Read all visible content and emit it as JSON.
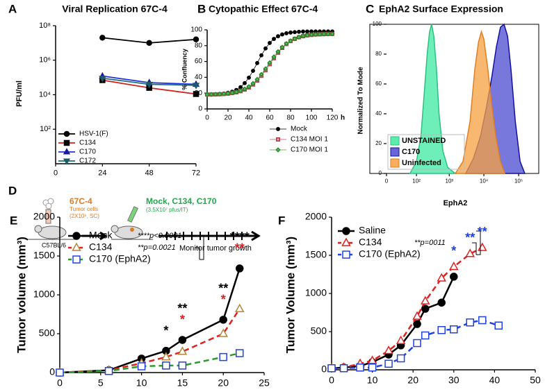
{
  "chart_data": [
    {
      "type": "line",
      "panel_label": "A",
      "title": "Viral Replication 67C-4",
      "y_label": "PFU/ml",
      "y_scale": "log",
      "x": [
        24,
        48,
        72
      ],
      "xlim": [
        0,
        72
      ],
      "xticks": [
        0,
        24,
        48,
        72
      ],
      "ylim": [
        1,
        100000000
      ],
      "yticks": [
        {
          "value": 100,
          "label": "10²"
        },
        {
          "value": 10000,
          "label": "10⁴"
        },
        {
          "value": 1000000,
          "label": "10⁶"
        },
        {
          "value": 100000000,
          "label": "10⁸"
        }
      ],
      "series": [
        {
          "name": "HSV-1(F)",
          "color": "#000000",
          "marker": "circle",
          "marker_color": "#000000",
          "marker_fill": "#000000",
          "values": [
            20000000,
            10000000,
            16000000
          ]
        },
        {
          "name": "C134",
          "color": "#d42020",
          "marker": "square",
          "marker_color": "#000000",
          "marker_fill": "#000000",
          "values": [
            70000,
            25000,
            11000
          ]
        },
        {
          "name": "C170",
          "color": "#2030e0",
          "marker": "triangle",
          "marker_color": "#1a1aa0",
          "marker_fill": "#1a1aa0",
          "values": [
            120000,
            50000,
            40000
          ]
        },
        {
          "name": "C172",
          "color": "#1f6f7a",
          "marker": "triangle-down",
          "marker_color": "#1f5a66",
          "marker_fill": "#1f5a66",
          "values": [
            90000,
            40000,
            35000
          ]
        }
      ]
    },
    {
      "type": "line",
      "panel_label": "B",
      "title": "Cytopathic Effect 67C-4",
      "y_label": "% Confluency",
      "x_unit": "h",
      "x": [
        0,
        4,
        8,
        12,
        16,
        20,
        24,
        28,
        32,
        36,
        40,
        44,
        48,
        52,
        56,
        60,
        64,
        68,
        72,
        76,
        80,
        84,
        88,
        92,
        96,
        100,
        104,
        108,
        112,
        116,
        120
      ],
      "xlim": [
        0,
        120
      ],
      "xticks": [
        0,
        20,
        40,
        60,
        80,
        100,
        120
      ],
      "ylim": [
        0,
        100
      ],
      "yticks": [
        0,
        20,
        40,
        60,
        80,
        100
      ],
      "series": [
        {
          "name": "Mock",
          "color": "#000000",
          "marker": "circle",
          "marker_color": "#000000",
          "marker_fill": "#000000",
          "values": [
            18.2,
            18.3,
            18.5,
            18.9,
            19.4,
            20.4,
            21.8,
            24.0,
            27.5,
            32.6,
            39.5,
            48.2,
            58.0,
            67.8,
            76.5,
            83.4,
            88.5,
            91.9,
            94.2,
            95.7,
            96.6,
            97.1,
            97.5,
            97.8,
            97.9,
            98.0,
            98.0,
            98.0,
            98.0,
            98.0,
            98.0
          ]
        },
        {
          "name": "C134 MOI 1",
          "color": "#c05060",
          "marker": "square",
          "marker_color": "#b03a4a",
          "marker_fill": "#f0a0a8",
          "values": [
            18.2,
            18.3,
            18.4,
            18.6,
            18.9,
            19.4,
            20.1,
            21.0,
            22.4,
            24.4,
            27.2,
            30.9,
            35.8,
            41.8,
            48.9,
            56.5,
            64.1,
            71.1,
            77.2,
            82.1,
            85.8,
            88.6,
            90.6,
            92.0,
            93.0,
            93.6,
            94.1,
            94.4,
            94.6,
            94.7,
            94.8
          ]
        },
        {
          "name": "C170 MOI 1",
          "color": "#3aa03a",
          "marker": "diamond",
          "marker_color": "#2a8a2a",
          "marker_fill": "#60c060",
          "values": [
            18.2,
            18.3,
            18.5,
            18.7,
            19.1,
            19.6,
            20.4,
            21.4,
            23.0,
            25.2,
            28.2,
            32.2,
            37.4,
            43.6,
            50.8,
            58.4,
            65.8,
            72.4,
            78.0,
            82.6,
            86.1,
            88.8,
            90.8,
            92.2,
            93.2,
            93.8,
            94.2,
            94.5,
            94.7,
            94.8,
            94.9
          ]
        }
      ]
    },
    {
      "type": "area",
      "panel_label": "C",
      "title": "EphA2 Surface Expression",
      "y_label": "Normalized To Mode",
      "x_label": "EphA2",
      "x_scale": "biexponential",
      "xlim": [
        0,
        300000
      ],
      "xticks": [
        0,
        {
          "value": 100,
          "label": "10²"
        },
        {
          "value": 1000,
          "label": "10³"
        },
        {
          "value": 10000,
          "label": "10⁴"
        },
        {
          "value": 100000,
          "label": "10⁵"
        }
      ],
      "ylim": [
        0,
        100
      ],
      "yticks": [
        0,
        20,
        40,
        60,
        80,
        100
      ],
      "series": [
        {
          "name": "UNSTAINED",
          "color": "#3de8a0",
          "line_color": "#2cc080",
          "x": [
            60,
            100,
            140,
            180,
            220,
            260,
            300,
            350,
            420,
            500,
            650,
            900,
            1500
          ],
          "values": [
            0,
            8,
            25,
            55,
            80,
            95,
            100,
            92,
            70,
            40,
            15,
            4,
            0
          ]
        },
        {
          "name": "C170",
          "color": "#4a4ad0",
          "line_color": "#1010a0",
          "x": [
            3000,
            5000,
            8000,
            12000,
            17000,
            23000,
            30000,
            38000,
            48000,
            60000,
            80000,
            110000,
            150000
          ],
          "values": [
            0,
            10,
            25,
            45,
            65,
            85,
            98,
            100,
            92,
            70,
            35,
            8,
            0
          ]
        },
        {
          "name": "Uninfected",
          "color": "#f7a040",
          "line_color": "#e08020",
          "x": [
            1500,
            2500,
            4000,
            5500,
            7000,
            8500,
            10000,
            13000,
            17000,
            22000,
            30000,
            40000
          ],
          "values": [
            0,
            8,
            35,
            70,
            88,
            95,
            90,
            70,
            45,
            25,
            8,
            0
          ]
        }
      ]
    },
    {
      "type": "line",
      "panel_label": "E",
      "y_label": "Tumor volume (mm³)",
      "x": [
        0,
        6,
        10,
        13,
        15,
        20,
        22
      ],
      "xlim": [
        0,
        25
      ],
      "xticks": [
        0,
        5,
        10,
        15,
        20,
        25
      ],
      "ylim": [
        0,
        2000
      ],
      "yticks": [
        0,
        500,
        1000,
        1500,
        2000
      ],
      "series": [
        {
          "name": "Mock",
          "p_label": "****p<0.0001",
          "color": "#000000",
          "marker": "circle",
          "marker_color": "#000000",
          "marker_fill": "#000000",
          "values": [
            0,
            30,
            180,
            280,
            420,
            680,
            1340
          ]
        },
        {
          "name": "C134",
          "p_label": "**p=0.0021",
          "color": "#e02020",
          "line_style": "dashed",
          "marker": "triangle",
          "marker_color": "#b5853a",
          "marker_fill": "#ffffff",
          "values": [
            0,
            30,
            120,
            200,
            270,
            500,
            820
          ]
        },
        {
          "name": "C170 (EphA2)",
          "color": "#2e9a2e",
          "line_style": "dashed",
          "marker": "square",
          "marker_color": "#2040e0",
          "marker_fill": "#ffffff",
          "values": [
            0,
            20,
            80,
            90,
            90,
            200,
            250
          ]
        }
      ],
      "annotations": [
        {
          "text": "*",
          "x": 13,
          "color": "#000000"
        },
        {
          "text": "*",
          "x": 15,
          "color": "#e02020"
        },
        {
          "text": "**",
          "x": 15,
          "color": "#000000"
        },
        {
          "text": "*",
          "x": 20,
          "color": "#e02020"
        },
        {
          "text": "**",
          "x": 20,
          "color": "#000000"
        },
        {
          "text": "**",
          "x": 22,
          "color": "#e02020"
        },
        {
          "text": "****",
          "x": 22,
          "color": "#000000"
        }
      ]
    },
    {
      "type": "line",
      "panel_label": "F",
      "y_label": "Tumor Volume (mm³)",
      "xlim": [
        0,
        50
      ],
      "xticks": [
        0,
        10,
        20,
        30,
        40,
        50
      ],
      "ylim": [
        0,
        2000
      ],
      "yticks": [
        0,
        500,
        1000,
        1500,
        2000
      ],
      "series": [
        {
          "name": "Saline",
          "color": "#000000",
          "marker": "circle",
          "marker_color": "#000000",
          "marker_fill": "#000000",
          "x": [
            0,
            3,
            7,
            10,
            14,
            17,
            21,
            23,
            27,
            30
          ],
          "values": [
            20,
            30,
            50,
            100,
            200,
            320,
            600,
            800,
            880,
            1220
          ]
        },
        {
          "name": "C134",
          "p_label": "**p=0011",
          "color": "#e02020",
          "line_style": "dashed",
          "marker": "triangle",
          "marker_color": "#e02020",
          "marker_fill": "#ffffff",
          "x": [
            0,
            3,
            7,
            10,
            14,
            17,
            21,
            23,
            27,
            30,
            34,
            37
          ],
          "values": [
            20,
            30,
            80,
            120,
            250,
            380,
            700,
            900,
            1200,
            1350,
            1520,
            1600
          ]
        },
        {
          "name": "C170 (EphA2)",
          "color": "#2040e0",
          "line_style": "dashed",
          "marker": "square",
          "marker_color": "#2040e0",
          "marker_fill": "#ffffff",
          "x": [
            0,
            3,
            7,
            10,
            14,
            17,
            21,
            23,
            27,
            30,
            34,
            37,
            41
          ],
          "values": [
            20,
            20,
            30,
            30,
            80,
            150,
            350,
            450,
            520,
            530,
            620,
            650,
            580
          ]
        }
      ],
      "annotations": [
        {
          "text": "*",
          "x": 30,
          "color": "#2040e0"
        },
        {
          "text": "**",
          "x": 34,
          "color": "#2040e0"
        },
        {
          "text": "**",
          "x": 37,
          "color": "#2040e0"
        }
      ]
    }
  ],
  "schematic": {
    "panel_label": "D",
    "tumor": {
      "name": "67C-4",
      "cells": "Tumor cells",
      "dose": "(2X10⁶, SC)"
    },
    "mouse_strain": "C57BL/6",
    "treatment": {
      "name": "Mock, C134, C170",
      "dose": "(3.5X10⁷ pfus/IT)"
    },
    "monitor": "Monitor tumor growth"
  }
}
